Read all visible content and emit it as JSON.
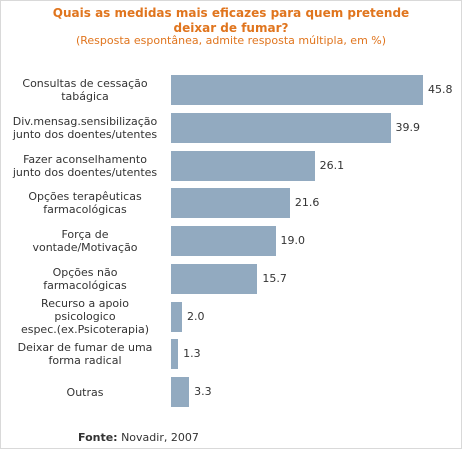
{
  "chart_data": {
    "type": "bar",
    "orientation": "horizontal",
    "title_lines": [
      "Quais as medidas mais eficazes para quem pretende",
      "deixar de fumar?"
    ],
    "subtitle": "(Resposta espontânea, admite resposta múltipla, em %)",
    "categories": [
      [
        "Consultas de cessação",
        "tabágica"
      ],
      [
        "Div.mensag.sensibilização",
        "junto dos doentes/utentes"
      ],
      [
        "Fazer aconselhamento",
        "junto dos doentes/utentes"
      ],
      [
        "Opções terapêuticas",
        "farmacológicas"
      ],
      [
        "Força de",
        "vontade/Motivação"
      ],
      [
        "Opções não",
        "farmacológicas"
      ],
      [
        "Recurso a apoio",
        "psicologico",
        "espec.(ex.Psicoterapia)"
      ],
      [
        "Deixar de fumar de uma",
        "forma radical"
      ],
      [
        "Outras"
      ]
    ],
    "values": [
      45.8,
      39.9,
      26.1,
      21.6,
      19.0,
      15.7,
      2.0,
      1.3,
      3.3
    ],
    "value_labels": [
      "45.8",
      "39.9",
      "26.1",
      "21.6",
      "19.0",
      "15.7",
      "2.0",
      "1.3",
      "3.3"
    ],
    "xlim": [
      0,
      45.8
    ],
    "grid": false,
    "bar_color": "#92aac0",
    "title_color": "#e0751e"
  },
  "source": {
    "label": "Fonte:",
    "text": " Novadir, 2007"
  }
}
